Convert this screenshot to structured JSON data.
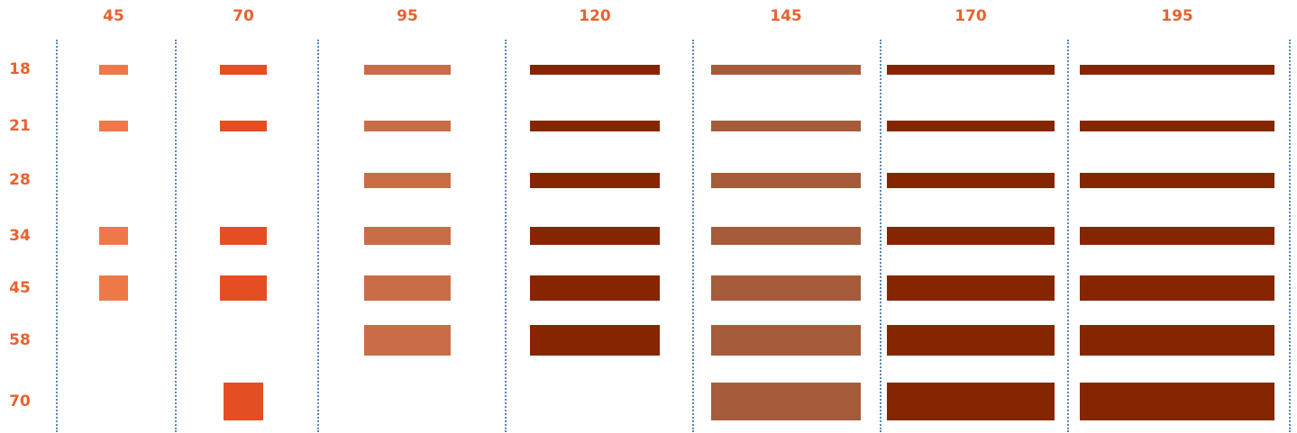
{
  "colors": {
    "label": "#e8622e",
    "divider": "#5b86b8",
    "columns": [
      "#ef7848",
      "#e54e22",
      "#c96d47",
      "#852600",
      "#a65b3a",
      "#852600",
      "#852600"
    ]
  },
  "columns": [
    "45",
    "70",
    "95",
    "120",
    "145",
    "170",
    "195"
  ],
  "rows": [
    "18",
    "21",
    "28",
    "34",
    "45",
    "58",
    "70"
  ],
  "matrix": [
    [
      true,
      true,
      true,
      true,
      true,
      true,
      true
    ],
    [
      true,
      true,
      true,
      true,
      true,
      true,
      true
    ],
    [
      false,
      false,
      true,
      true,
      true,
      true,
      true
    ],
    [
      true,
      true,
      true,
      true,
      true,
      true,
      true
    ],
    [
      true,
      true,
      true,
      true,
      true,
      true,
      true
    ],
    [
      false,
      false,
      true,
      true,
      true,
      true,
      true
    ],
    [
      false,
      true,
      false,
      false,
      true,
      true,
      true
    ]
  ]
}
